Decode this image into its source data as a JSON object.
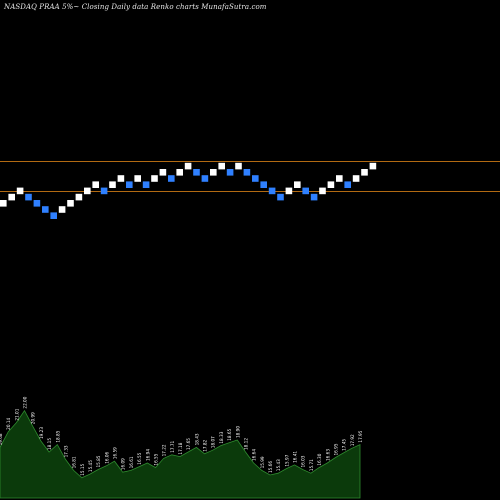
{
  "chart_data": {
    "type": "renko",
    "title": "NASDAQ PRAA 5%~  Closing Daily data  Renko  charts MunafaSutra.com",
    "colors": {
      "background": "#000000",
      "up_brick": "#ffffff",
      "down_brick": "#2f80ff",
      "reference_line": "#b26a12",
      "volume_area": "#0b3a0b",
      "volume_edge": "#2e8b2e",
      "volume_label": "#ffffff"
    },
    "reference_lines": [
      {
        "name": "upper",
        "level": 26.5
      },
      {
        "name": "lower",
        "level": 21.5
      }
    ],
    "bricks": [
      {
        "d": "up"
      },
      {
        "d": "up"
      },
      {
        "d": "up"
      },
      {
        "d": "down"
      },
      {
        "d": "down"
      },
      {
        "d": "down"
      },
      {
        "d": "down"
      },
      {
        "d": "up"
      },
      {
        "d": "up"
      },
      {
        "d": "up"
      },
      {
        "d": "up"
      },
      {
        "d": "up"
      },
      {
        "d": "down"
      },
      {
        "d": "up"
      },
      {
        "d": "up"
      },
      {
        "d": "down"
      },
      {
        "d": "up"
      },
      {
        "d": "down"
      },
      {
        "d": "up"
      },
      {
        "d": "up"
      },
      {
        "d": "down"
      },
      {
        "d": "up"
      },
      {
        "d": "up"
      },
      {
        "d": "down"
      },
      {
        "d": "down"
      },
      {
        "d": "up"
      },
      {
        "d": "up"
      },
      {
        "d": "down"
      },
      {
        "d": "up"
      },
      {
        "d": "down"
      },
      {
        "d": "down"
      },
      {
        "d": "down"
      },
      {
        "d": "down"
      },
      {
        "d": "down"
      },
      {
        "d": "up"
      },
      {
        "d": "up"
      },
      {
        "d": "down"
      },
      {
        "d": "down"
      },
      {
        "d": "up"
      },
      {
        "d": "up"
      },
      {
        "d": "up"
      },
      {
        "d": "down"
      },
      {
        "d": "up"
      },
      {
        "d": "up"
      },
      {
        "d": "up"
      }
    ],
    "volume": [
      {
        "v": 0.55,
        "label": "19.68"
      },
      {
        "v": 0.72,
        "label": "20.14"
      },
      {
        "v": 0.82,
        "label": "21.01"
      },
      {
        "v": 0.95,
        "label": "22.00"
      },
      {
        "v": 0.78,
        "label": "20.99"
      },
      {
        "v": 0.62,
        "label": "19.23"
      },
      {
        "v": 0.5,
        "label": "18.15"
      },
      {
        "v": 0.58,
        "label": "18.85"
      },
      {
        "v": 0.42,
        "label": "17.33"
      },
      {
        "v": 0.3,
        "label": "16.81"
      },
      {
        "v": 0.22,
        "label": "15.15"
      },
      {
        "v": 0.26,
        "label": "15.45"
      },
      {
        "v": 0.31,
        "label": "15.85"
      },
      {
        "v": 0.35,
        "label": "16.06"
      },
      {
        "v": 0.4,
        "label": "16.59"
      },
      {
        "v": 0.28,
        "label": "16.09"
      },
      {
        "v": 0.3,
        "label": "16.61"
      },
      {
        "v": 0.34,
        "label": "16.55"
      },
      {
        "v": 0.38,
        "label": "16.94"
      },
      {
        "v": 0.33,
        "label": "16.55"
      },
      {
        "v": 0.43,
        "label": "17.22"
      },
      {
        "v": 0.47,
        "label": "17.71"
      },
      {
        "v": 0.45,
        "label": "17.18"
      },
      {
        "v": 0.5,
        "label": "17.65"
      },
      {
        "v": 0.55,
        "label": "18.43"
      },
      {
        "v": 0.48,
        "label": "17.82"
      },
      {
        "v": 0.52,
        "label": "18.07"
      },
      {
        "v": 0.57,
        "label": "18.33"
      },
      {
        "v": 0.6,
        "label": "18.65"
      },
      {
        "v": 0.63,
        "label": "18.90"
      },
      {
        "v": 0.5,
        "label": "18.12"
      },
      {
        "v": 0.38,
        "label": "16.64"
      },
      {
        "v": 0.3,
        "label": "15.99"
      },
      {
        "v": 0.25,
        "label": "15.66"
      },
      {
        "v": 0.27,
        "label": "15.43"
      },
      {
        "v": 0.32,
        "label": "15.97"
      },
      {
        "v": 0.36,
        "label": "16.41"
      },
      {
        "v": 0.31,
        "label": "16.03"
      },
      {
        "v": 0.27,
        "label": "15.71"
      },
      {
        "v": 0.33,
        "label": "16.30"
      },
      {
        "v": 0.38,
        "label": "16.63"
      },
      {
        "v": 0.44,
        "label": "16.95"
      },
      {
        "v": 0.49,
        "label": "17.45"
      },
      {
        "v": 0.54,
        "label": "17.92"
      },
      {
        "v": 0.58,
        "label": "17.95"
      }
    ]
  }
}
